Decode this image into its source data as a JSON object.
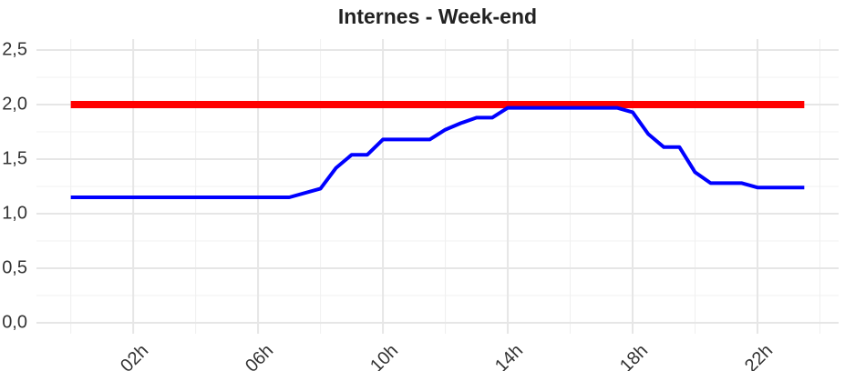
{
  "chart_data": {
    "type": "line",
    "title": "Internes - Week-end",
    "series": [
      {
        "color": "#ff0000",
        "x": [
          0,
          23.5
        ],
        "values": [
          2,
          2
        ]
      },
      {
        "color": "#0000ff",
        "x": [
          0,
          7,
          8,
          8.5,
          9,
          9.5,
          10,
          11.5,
          12,
          12.5,
          13,
          13.5,
          14,
          17.5,
          18,
          18.5,
          19,
          19.5,
          20,
          20.5,
          21.5,
          22,
          23.5
        ],
        "values": [
          1.15,
          1.15,
          1.23,
          1.42,
          1.54,
          1.54,
          1.68,
          1.68,
          1.77,
          1.83,
          1.88,
          1.88,
          1.97,
          1.97,
          1.93,
          1.73,
          1.61,
          1.61,
          1.38,
          1.28,
          1.28,
          1.24,
          1.24
        ]
      }
    ],
    "xlim": [
      -1.1,
      24.6
    ],
    "ylim": [
      -0.1,
      2.6
    ],
    "xticks": [
      {
        "value": 2,
        "label": "02h"
      },
      {
        "value": 6,
        "label": "06h"
      },
      {
        "value": 10,
        "label": "10h"
      },
      {
        "value": 14,
        "label": "14h"
      },
      {
        "value": 18,
        "label": "18h"
      },
      {
        "value": 22,
        "label": "22h"
      }
    ],
    "x_minor_ticks": [
      0,
      4,
      8,
      12,
      16,
      20,
      24
    ],
    "yticks": [
      {
        "value": 0,
        "label": "0,0"
      },
      {
        "value": 0.5,
        "label": "0,5"
      },
      {
        "value": 1,
        "label": "1,0"
      },
      {
        "value": 1.5,
        "label": "1,5"
      },
      {
        "value": 2,
        "label": "2,0"
      },
      {
        "value": 2.5,
        "label": "2,5"
      }
    ],
    "y_minor_ticks": [
      0.25,
      0.75,
      1.25,
      1.75,
      2.25
    ],
    "grid": true
  }
}
